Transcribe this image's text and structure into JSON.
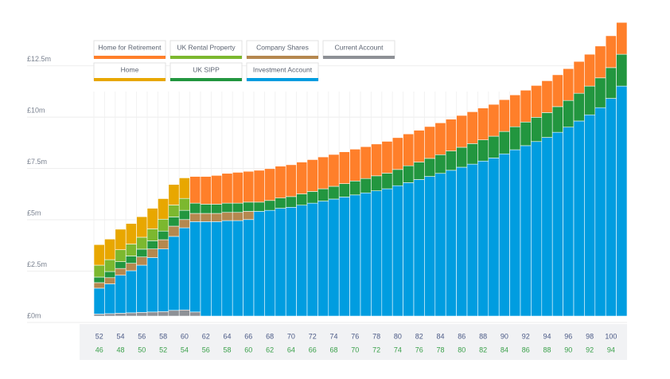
{
  "chart_data": {
    "type": "stacked_bar",
    "categories": [
      52,
      null,
      54,
      null,
      56,
      null,
      58,
      null,
      60,
      null,
      62,
      null,
      64,
      null,
      66,
      null,
      68,
      null,
      70,
      null,
      72,
      null,
      74,
      null,
      76,
      null,
      78,
      null,
      80,
      null,
      82,
      null,
      84,
      null,
      86,
      null,
      88,
      null,
      90,
      null,
      92,
      null,
      94,
      null,
      96,
      null,
      98,
      null,
      100,
      null
    ],
    "secondary_categories": [
      46,
      null,
      48,
      null,
      50,
      null,
      52,
      null,
      54,
      null,
      56,
      null,
      58,
      null,
      60,
      null,
      62,
      null,
      64,
      null,
      66,
      null,
      68,
      null,
      70,
      null,
      72,
      null,
      74,
      null,
      76,
      null,
      78,
      null,
      80,
      null,
      82,
      null,
      84,
      null,
      86,
      null,
      88,
      null,
      90,
      null,
      92,
      null,
      94,
      null
    ],
    "ylim": [
      0,
      14.5
    ],
    "yticks": [
      {
        "value": 0,
        "label": "£0m"
      },
      {
        "value": 2.5,
        "label": "£2.5m"
      },
      {
        "value": 5,
        "label": "£5m"
      },
      {
        "value": 7.5,
        "label": "£7.5m"
      },
      {
        "value": 10,
        "label": "£10m"
      },
      {
        "value": 12.5,
        "label": "£12.5m"
      }
    ],
    "grid": true,
    "series": [
      {
        "name": "Current Account",
        "color": "#8e9196",
        "values": [
          0.1,
          0.12,
          0.14,
          0.16,
          0.18,
          0.2,
          0.22,
          0.28,
          0.3,
          0.2,
          0,
          0,
          0,
          0,
          0,
          0,
          0,
          0,
          0,
          0,
          0,
          0,
          0,
          0,
          0,
          0,
          0,
          0,
          0,
          0,
          0,
          0,
          0,
          0,
          0,
          0,
          0,
          0,
          0,
          0,
          0,
          0,
          0,
          0,
          0,
          0,
          0,
          0,
          0,
          0
        ]
      },
      {
        "name": "Investment Account",
        "color": "#009de0",
        "values": [
          1.26,
          1.45,
          1.85,
          2.05,
          2.3,
          2.65,
          3.05,
          3.6,
          4.0,
          4.4,
          4.6,
          4.6,
          4.65,
          4.65,
          4.7,
          5.1,
          5.15,
          5.25,
          5.3,
          5.4,
          5.5,
          5.6,
          5.7,
          5.8,
          5.9,
          6.0,
          6.1,
          6.2,
          6.35,
          6.5,
          6.65,
          6.8,
          6.95,
          7.1,
          7.25,
          7.4,
          7.55,
          7.7,
          7.9,
          8.1,
          8.3,
          8.5,
          8.7,
          8.95,
          9.2,
          9.5,
          9.8,
          10.15,
          10.6,
          11.2
        ]
      },
      {
        "name": "Company Shares",
        "color": "#b5884f",
        "values": [
          0.27,
          0.3,
          0.33,
          0.36,
          0.4,
          0.42,
          0.45,
          0.5,
          0.4,
          0.4,
          0.4,
          0.4,
          0.4,
          0.4,
          0.4,
          0,
          0,
          0,
          0,
          0,
          0,
          0,
          0,
          0,
          0,
          0,
          0,
          0,
          0,
          0,
          0,
          0,
          0,
          0,
          0,
          0,
          0,
          0,
          0,
          0,
          0,
          0,
          0,
          0,
          0,
          0,
          0,
          0,
          0,
          0
        ]
      },
      {
        "name": "UK SIPP",
        "color": "#22963f",
        "values": [
          0.27,
          0.3,
          0.33,
          0.36,
          0.38,
          0.4,
          0.42,
          0.45,
          0.45,
          0.5,
          0.45,
          0.45,
          0.45,
          0.45,
          0.45,
          0.45,
          0.48,
          0.5,
          0.52,
          0.55,
          0.57,
          0.6,
          0.62,
          0.65,
          0.68,
          0.7,
          0.73,
          0.76,
          0.79,
          0.82,
          0.85,
          0.88,
          0.91,
          0.94,
          0.97,
          1.0,
          1.03,
          1.06,
          1.09,
          1.12,
          1.15,
          1.18,
          1.21,
          1.25,
          1.3,
          1.35,
          1.4,
          1.45,
          1.5,
          1.55
        ]
      },
      {
        "name": "UK Rental Property",
        "color": "#7cb82f",
        "values": [
          0.58,
          0.58,
          0.58,
          0.58,
          0.58,
          0.58,
          0.58,
          0.58,
          0.58,
          0,
          0,
          0,
          0,
          0,
          0,
          0,
          0,
          0,
          0,
          0,
          0,
          0,
          0,
          0,
          0,
          0,
          0,
          0,
          0,
          0,
          0,
          0,
          0,
          0,
          0,
          0,
          0,
          0,
          0,
          0,
          0,
          0,
          0,
          0,
          0,
          0,
          0,
          0,
          0,
          0
        ]
      },
      {
        "name": "Home",
        "color": "#e8a700",
        "values": [
          1.0,
          1.0,
          1.0,
          1.0,
          1.0,
          1.0,
          1.0,
          1.0,
          1.0,
          0,
          0,
          0,
          0,
          0,
          0,
          0,
          0,
          0,
          0,
          0,
          0,
          0,
          0,
          0,
          0,
          0,
          0,
          0,
          0,
          0,
          0,
          0,
          0,
          0,
          0,
          0,
          0,
          0,
          0,
          0,
          0,
          0,
          0,
          0,
          0,
          0,
          0,
          0,
          0,
          0
        ]
      },
      {
        "name": "Home for Retirement",
        "color": "#ff7f2a",
        "values": [
          0,
          0,
          0,
          0,
          0,
          0,
          0,
          0,
          0,
          1.3,
          1.35,
          1.4,
          1.45,
          1.5,
          1.5,
          1.55,
          1.55,
          1.55,
          1.55,
          1.55,
          1.55,
          1.55,
          1.55,
          1.55,
          1.55,
          1.55,
          1.55,
          1.55,
          1.55,
          1.55,
          1.55,
          1.55,
          1.55,
          1.55,
          1.55,
          1.55,
          1.55,
          1.55,
          1.55,
          1.55,
          1.55,
          1.55,
          1.55,
          1.55,
          1.55,
          1.55,
          1.55,
          1.55,
          1.55,
          1.55
        ]
      }
    ]
  }
}
